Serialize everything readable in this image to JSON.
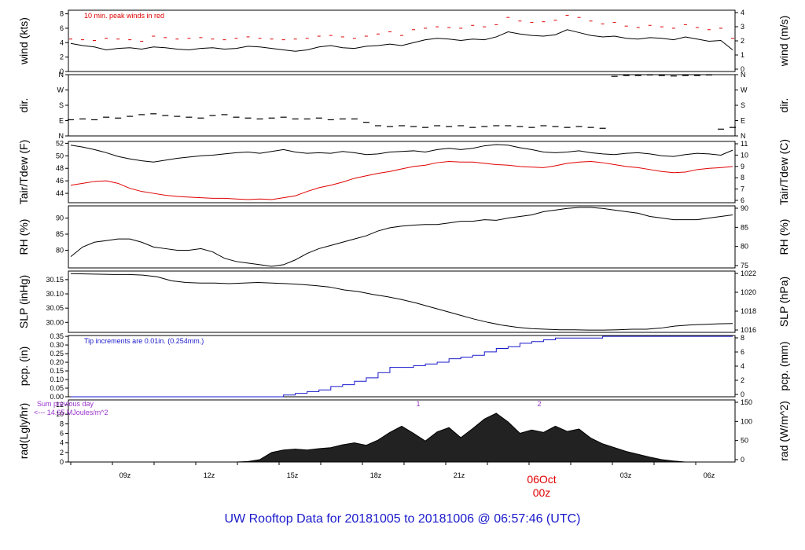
{
  "footer": {
    "title": "UW Rooftop Data for 20181005  to  20181006 @ 06:57:46  (UTC)"
  },
  "time_axis": {
    "labels": [
      "09z",
      "12z",
      "15z",
      "18z",
      "21z",
      "03z",
      "06z"
    ],
    "date_label_top": "06Oct",
    "date_label_bottom": "00z"
  },
  "colors": {
    "main": "#000000",
    "red": "#e00000",
    "blue": "#1a1acc",
    "purple": "#9933cc"
  },
  "chart_data": [
    {
      "type": "line",
      "left_label": "wind (kts)",
      "right_label": "wind (m/s)",
      "left_ticks": [
        "0",
        "2",
        "4",
        "6",
        "8"
      ],
      "right_ticks": [
        "0",
        "1",
        "2",
        "3",
        "4"
      ],
      "ylim": [
        0,
        8.5
      ],
      "annotation": "10 min. peak winds in red",
      "series": [
        {
          "color": "black",
          "values": [
            3.9,
            3.6,
            3.4,
            3.0,
            3.2,
            3.3,
            3.1,
            3.4,
            3.3,
            3.1,
            3.0,
            3.2,
            3.3,
            3.1,
            3.2,
            3.5,
            3.4,
            3.2,
            3.0,
            2.8,
            3.0,
            3.4,
            3.6,
            3.3,
            3.2,
            3.5,
            3.6,
            3.8,
            3.6,
            4.0,
            4.4,
            4.6,
            4.5,
            4.3,
            4.5,
            4.4,
            4.8,
            5.5,
            5.2,
            5.0,
            4.9,
            5.1,
            5.8,
            5.4,
            5.0,
            4.8,
            4.9,
            4.6,
            4.5,
            4.7,
            4.6,
            4.4,
            4.8,
            4.5,
            4.2,
            4.3,
            3.0
          ]
        },
        {
          "color": "red",
          "values": [
            4.5,
            4.4,
            4.3,
            4.6,
            4.5,
            4.4,
            4.2,
            4.9,
            4.7,
            4.5,
            4.6,
            4.7,
            4.5,
            4.4,
            4.6,
            4.8,
            4.6,
            4.5,
            4.4,
            4.5,
            4.6,
            4.9,
            5.0,
            4.8,
            4.6,
            4.9,
            5.2,
            5.5,
            5.0,
            5.8,
            6.0,
            6.2,
            6.1,
            6.0,
            6.4,
            6.2,
            6.5,
            7.5,
            7.0,
            6.8,
            6.9,
            7.1,
            7.8,
            7.5,
            7.0,
            6.6,
            6.8,
            6.3,
            6.1,
            6.4,
            6.2,
            6.0,
            6.5,
            6.1,
            5.8,
            6.0,
            4.6
          ]
        }
      ]
    },
    {
      "type": "scatter",
      "left_label": "dir.",
      "right_label": "dir.",
      "left_ticks": [
        "N",
        "E",
        "S",
        "W",
        "N"
      ],
      "right_ticks": [
        "N",
        "E",
        "S",
        "W",
        "N"
      ],
      "ylim": [
        0,
        360
      ],
      "series": [
        {
          "color": "black",
          "values": [
            95,
            100,
            95,
            110,
            105,
            115,
            125,
            130,
            120,
            115,
            110,
            105,
            120,
            125,
            110,
            105,
            100,
            105,
            110,
            100,
            100,
            105,
            95,
            100,
            100,
            80,
            60,
            55,
            60,
            55,
            50,
            60,
            55,
            60,
            50,
            55,
            60,
            60,
            55,
            50,
            60,
            55,
            50,
            55,
            50,
            45,
            350,
            355,
            355,
            358,
            355,
            352,
            355,
            355,
            358,
            40,
            50
          ]
        }
      ]
    },
    {
      "type": "line",
      "left_label": "Tair/Tdew (F)",
      "right_label": "Tair/Tdew (C)",
      "left_ticks": [
        "44",
        "46",
        "48",
        "50",
        "52"
      ],
      "right_ticks": [
        "6",
        "7",
        "8",
        "9",
        "10",
        "11"
      ],
      "ylim": [
        42.5,
        52.3
      ],
      "series": [
        {
          "name": "Tair",
          "color": "black",
          "values": [
            51.7,
            51.4,
            51.0,
            50.5,
            49.9,
            49.5,
            49.2,
            49.0,
            49.3,
            49.6,
            49.8,
            50.0,
            50.1,
            50.3,
            50.5,
            50.6,
            50.4,
            50.7,
            51.0,
            50.6,
            50.4,
            50.5,
            50.4,
            50.7,
            50.5,
            50.2,
            50.3,
            50.6,
            50.7,
            50.8,
            50.6,
            51.0,
            51.2,
            51.0,
            51.2,
            51.6,
            51.8,
            51.7,
            51.3,
            51.0,
            50.6,
            50.5,
            50.6,
            50.8,
            50.5,
            50.3,
            50.2,
            50.4,
            50.5,
            50.3,
            50.0,
            49.9,
            50.2,
            50.4,
            50.3,
            50.1,
            50.9
          ]
        },
        {
          "name": "Tdew",
          "color": "red",
          "values": [
            45.3,
            45.6,
            45.9,
            46.0,
            45.6,
            44.8,
            44.3,
            44.0,
            43.7,
            43.5,
            43.4,
            43.3,
            43.2,
            43.2,
            43.1,
            43.0,
            43.1,
            43.0,
            43.3,
            43.6,
            44.3,
            44.9,
            45.3,
            45.8,
            46.4,
            46.8,
            47.2,
            47.5,
            47.9,
            48.3,
            48.5,
            48.9,
            49.1,
            49.0,
            49.0,
            48.8,
            48.6,
            48.5,
            48.3,
            48.2,
            48.1,
            48.4,
            48.8,
            49.0,
            49.1,
            48.9,
            48.6,
            48.3,
            48.1,
            47.8,
            47.5,
            47.3,
            47.4,
            47.8,
            48.0,
            48.1,
            48.3
          ]
        }
      ]
    },
    {
      "type": "line",
      "left_label": "RH (%)",
      "right_label": "RH (%)",
      "left_ticks": [
        "80",
        "85",
        "90"
      ],
      "right_ticks": [
        "75",
        "80",
        "85",
        "90"
      ],
      "ylim": [
        74.5,
        93.8
      ],
      "series": [
        {
          "color": "black",
          "values": [
            78,
            81,
            82.5,
            83,
            83.5,
            83.5,
            82.5,
            81,
            80.5,
            80,
            80,
            80.5,
            79.5,
            77.5,
            76.5,
            76,
            75.5,
            75,
            75.5,
            77,
            79,
            80.5,
            81.5,
            82.5,
            83.5,
            84.5,
            86,
            87,
            87.5,
            87.8,
            88,
            88,
            88.5,
            89,
            89,
            89.5,
            89.3,
            90,
            90.5,
            91,
            92,
            92.5,
            93,
            93.3,
            93.3,
            93,
            92.5,
            92,
            91.5,
            90.5,
            90,
            89.5,
            89.5,
            89.5,
            90,
            90.5,
            91
          ]
        }
      ]
    },
    {
      "type": "line",
      "left_label": "SLP (inHg)",
      "right_label": "SLP (hPa)",
      "left_ticks": [
        "30.00",
        "30.05",
        "30.10",
        "30.15"
      ],
      "right_ticks": [
        "1016",
        "1018",
        "1020",
        "1022"
      ],
      "ylim": [
        29.965,
        30.18
      ],
      "series": [
        {
          "color": "black",
          "values": [
            30.171,
            30.17,
            30.169,
            30.168,
            30.168,
            30.166,
            30.16,
            30.146,
            30.14,
            30.138,
            30.138,
            30.136,
            30.138,
            30.14,
            30.138,
            30.136,
            30.133,
            30.129,
            30.124,
            30.114,
            30.108,
            30.098,
            30.09,
            30.08,
            30.068,
            30.054,
            30.04,
            30.026,
            30.012,
            30.0,
            29.99,
            29.983,
            29.978,
            29.976,
            29.974,
            29.974,
            29.973,
            29.973,
            29.974,
            29.976,
            29.976,
            29.98,
            29.987,
            29.991,
            29.993,
            29.995,
            29.996
          ]
        }
      ]
    },
    {
      "type": "area",
      "left_label": "pcp. (in)",
      "right_label": "pcp. (mm)",
      "left_ticks": [
        "0.00",
        "0.05",
        "0.10",
        "0.15",
        "0.20",
        "0.25",
        "0.30",
        "0.35"
      ],
      "right_ticks": [
        "0",
        "2",
        "4",
        "6",
        "8"
      ],
      "ylim": [
        0,
        0.355
      ],
      "annotation": "Tip increments are 0.01in. (0.254mm.)",
      "series": [
        {
          "color": "blue",
          "values": [
            0,
            0,
            0,
            0,
            0,
            0,
            0,
            0,
            0,
            0,
            0,
            0,
            0,
            0,
            0,
            0,
            0,
            0,
            0.01,
            0.02,
            0.03,
            0.04,
            0.06,
            0.07,
            0.09,
            0.11,
            0.14,
            0.17,
            0.17,
            0.18,
            0.19,
            0.2,
            0.22,
            0.23,
            0.24,
            0.26,
            0.28,
            0.29,
            0.31,
            0.32,
            0.33,
            0.34,
            0.34,
            0.34,
            0.34,
            0.35,
            0.35,
            0.35,
            0.35,
            0.35,
            0.35,
            0.35,
            0.35,
            0.35,
            0.35,
            0.35,
            0.35
          ]
        }
      ]
    },
    {
      "type": "area",
      "left_label": "rad(Lgly/hr)",
      "right_label": "rad (W/m^2)",
      "left_ticks": [
        "0",
        "2",
        "4",
        "6",
        "8",
        "10",
        "12"
      ],
      "right_ticks": [
        "0",
        "50",
        "100",
        "150"
      ],
      "ylim": [
        0,
        13
      ],
      "annotation_1": "Sum previous day",
      "annotation_2": "<--- 14.65 MJoules/m^2",
      "markers": [
        "1",
        "2"
      ],
      "series": [
        {
          "color": "black",
          "values": [
            0,
            0,
            0,
            0,
            0,
            0,
            0,
            0,
            0,
            0,
            0,
            0,
            0,
            0,
            0,
            0.1,
            0.5,
            2.0,
            2.5,
            2.7,
            2.5,
            2.8,
            3.0,
            3.6,
            4.0,
            3.5,
            4.6,
            6.2,
            7.5,
            6.0,
            4.4,
            6.3,
            7.2,
            5.1,
            7.0,
            9.0,
            10.2,
            8.4,
            6.0,
            6.7,
            6.2,
            7.5,
            6.4,
            6.9,
            5.0,
            3.8,
            3.0,
            2.2,
            1.6,
            1.0,
            0.5,
            0.2,
            0,
            0,
            0,
            0,
            0
          ]
        }
      ]
    }
  ]
}
